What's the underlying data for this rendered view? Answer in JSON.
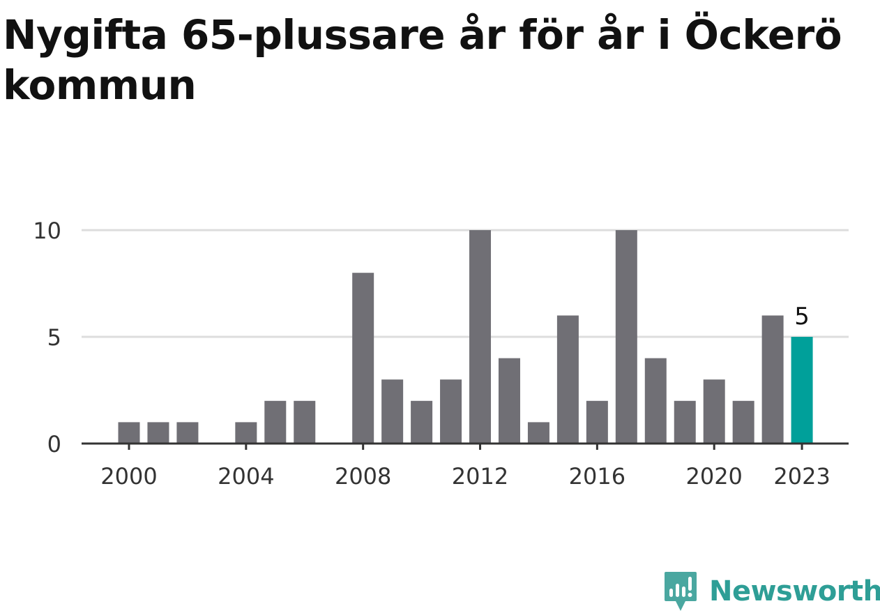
{
  "chart_data": {
    "type": "bar",
    "title": "Nygifta 65-plussare år för år i Öckerö kommun",
    "x": [
      2000,
      2001,
      2002,
      2003,
      2004,
      2005,
      2006,
      2007,
      2008,
      2009,
      2010,
      2011,
      2012,
      2013,
      2014,
      2015,
      2016,
      2017,
      2018,
      2019,
      2020,
      2021,
      2022,
      2023
    ],
    "values": [
      1,
      1,
      1,
      0,
      1,
      2,
      2,
      0,
      8,
      3,
      2,
      3,
      10,
      4,
      1,
      6,
      2,
      10,
      4,
      2,
      3,
      2,
      6,
      5
    ],
    "x_ticks": [
      "2000",
      "2004",
      "2008",
      "2012",
      "2016",
      "2020",
      "2023"
    ],
    "y_ticks": [
      "0",
      "5",
      "10"
    ],
    "ylim": [
      0,
      10
    ],
    "grid": true,
    "highlight": {
      "year": 2023,
      "label": "5"
    },
    "colors": {
      "bar": "#706f75",
      "highlight": "#00a09a",
      "grid": "#dddddd",
      "axis": "#333333"
    }
  },
  "brand": {
    "name": "Newsworthy",
    "icon": "newsworthy-logo-icon",
    "color": "#2e9e96"
  }
}
